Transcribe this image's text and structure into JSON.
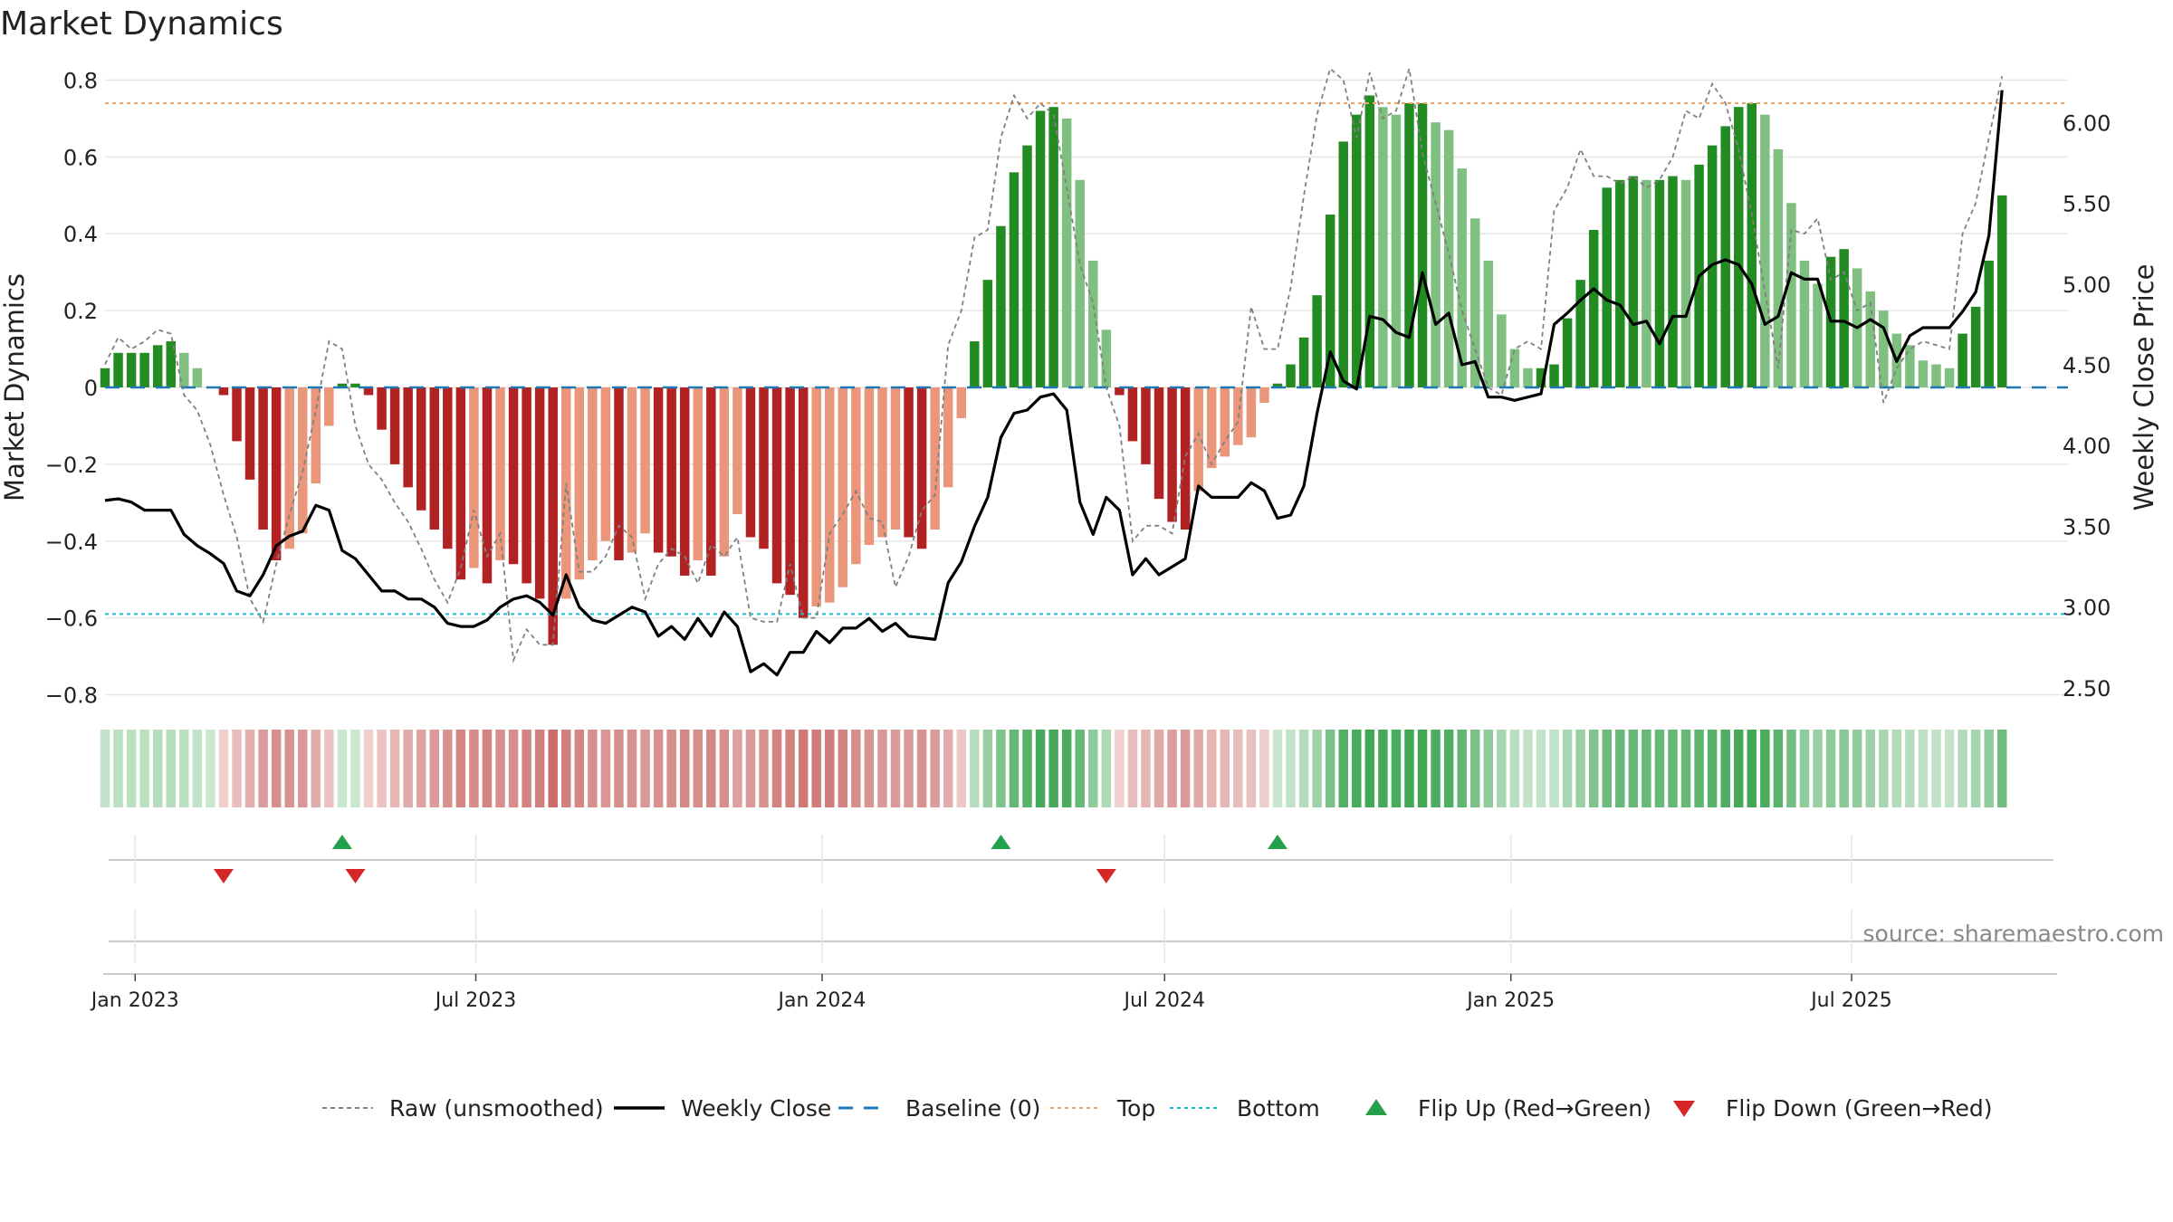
{
  "chart_data": {
    "type": "bar",
    "title": "Market Dynamics",
    "ylabel_left": "Market Dynamics",
    "ylabel_right": "Weekly Close Price",
    "left_ylim": [
      -0.82,
      0.82
    ],
    "left_yticks": [
      -0.8,
      -0.6,
      -0.4,
      -0.2,
      0,
      0.2,
      0.4,
      0.6,
      0.8
    ],
    "left_ytick_labels": [
      "−0.8",
      "−0.6",
      "−0.4",
      "−0.2",
      "0",
      "0.2",
      "0.4",
      "0.6",
      "0.8"
    ],
    "right_ylim": [
      2.41,
      6.31
    ],
    "right_yticks": [
      2.5,
      3.0,
      3.5,
      4.0,
      4.5,
      5.0,
      5.5,
      6.0
    ],
    "right_ytick_labels": [
      "2.50",
      "3.00",
      "3.50",
      "4.00",
      "4.50",
      "5.00",
      "5.50",
      "6.00"
    ],
    "x_start": "2022-12-16",
    "x_end": "2025-10-24",
    "xticks": [
      "2023-01-01",
      "2023-07-01",
      "2024-01-01",
      "2024-07-01",
      "2025-01-01",
      "2025-07-01"
    ],
    "xtick_labels": [
      "Jan 2023",
      "Jul 2023",
      "Jan 2024",
      "Jul 2024",
      "Jan 2025",
      "Jul 2025"
    ],
    "first_week": "2022-12-16",
    "week_step_days": 7,
    "top_line": 0.74,
    "bottom_line": -0.59,
    "baseline": 0,
    "grid": true,
    "smoothed": [
      0.05,
      0.09,
      0.09,
      0.09,
      0.11,
      0.12,
      0.09,
      0.05,
      0,
      -0.02,
      -0.14,
      -0.24,
      -0.37,
      -0.45,
      -0.42,
      -0.38,
      -0.25,
      -0.1,
      0.01,
      0.01,
      -0.02,
      -0.11,
      -0.2,
      -0.26,
      -0.32,
      -0.37,
      -0.42,
      -0.5,
      -0.47,
      -0.51,
      -0.45,
      -0.46,
      -0.51,
      -0.55,
      -0.67,
      -0.55,
      -0.5,
      -0.45,
      -0.4,
      -0.45,
      -0.43,
      -0.38,
      -0.43,
      -0.44,
      -0.49,
      -0.45,
      -0.49,
      -0.44,
      -0.33,
      -0.39,
      -0.42,
      -0.51,
      -0.54,
      -0.6,
      -0.57,
      -0.56,
      -0.52,
      -0.46,
      -0.41,
      -0.39,
      -0.37,
      -0.39,
      -0.42,
      -0.37,
      -0.26,
      -0.08,
      0.12,
      0.28,
      0.42,
      0.56,
      0.63,
      0.72,
      0.73,
      0.7,
      0.54,
      0.33,
      0.15,
      -0.02,
      -0.14,
      -0.2,
      -0.29,
      -0.35,
      -0.37,
      -0.27,
      -0.21,
      -0.18,
      -0.15,
      -0.13,
      -0.04,
      0.01,
      0.06,
      0.13,
      0.24,
      0.45,
      0.64,
      0.71,
      0.76,
      0.73,
      0.71,
      0.74,
      0.74,
      0.69,
      0.67,
      0.57,
      0.44,
      0.33,
      0.19,
      0.1,
      0.05,
      0.05,
      0.06,
      0.18,
      0.28,
      0.41,
      0.52,
      0.54,
      0.55,
      0.54,
      0.54,
      0.55,
      0.54,
      0.58,
      0.63,
      0.68,
      0.73,
      0.74,
      0.71,
      0.62,
      0.48,
      0.33,
      0.27,
      0.34,
      0.36,
      0.31,
      0.25,
      0.2,
      0.14,
      0.11,
      0.07,
      0.06,
      0.05,
      0.14,
      0.21,
      0.33,
      0.5
    ],
    "raw": [
      0.06,
      0.13,
      0.1,
      0.12,
      0.15,
      0.14,
      -0.02,
      -0.06,
      -0.15,
      -0.28,
      -0.39,
      -0.55,
      -0.61,
      -0.46,
      -0.33,
      -0.22,
      -0.06,
      0.12,
      0.1,
      -0.1,
      -0.2,
      -0.24,
      -0.3,
      -0.35,
      -0.42,
      -0.5,
      -0.56,
      -0.47,
      -0.32,
      -0.44,
      -0.38,
      -0.71,
      -0.63,
      -0.67,
      -0.67,
      -0.25,
      -0.48,
      -0.48,
      -0.44,
      -0.36,
      -0.39,
      -0.55,
      -0.46,
      -0.42,
      -0.44,
      -0.51,
      -0.41,
      -0.44,
      -0.39,
      -0.6,
      -0.61,
      -0.61,
      -0.46,
      -0.6,
      -0.6,
      -0.38,
      -0.33,
      -0.27,
      -0.34,
      -0.35,
      -0.52,
      -0.44,
      -0.32,
      -0.28,
      0.11,
      0.2,
      0.39,
      0.41,
      0.65,
      0.76,
      0.7,
      0.74,
      0.71,
      0.52,
      0.32,
      0.22,
      0,
      -0.1,
      -0.4,
      -0.36,
      -0.36,
      -0.38,
      -0.18,
      -0.12,
      -0.2,
      -0.14,
      -0.09,
      0.21,
      0.1,
      0.1,
      0.26,
      0.5,
      0.71,
      0.83,
      0.8,
      0.65,
      0.82,
      0.7,
      0.72,
      0.83,
      0.61,
      0.48,
      0.35,
      0.2,
      0.1,
      0,
      -0.02,
      0.1,
      0.12,
      0.1,
      0.46,
      0.52,
      0.62,
      0.55,
      0.55,
      0.53,
      0.55,
      0.52,
      0.54,
      0.6,
      0.72,
      0.7,
      0.79,
      0.74,
      0.62,
      0.45,
      0.25,
      0.05,
      0.41,
      0.4,
      0.44,
      0.28,
      0.3,
      0.2,
      0.22,
      -0.04,
      0.05,
      0.1,
      0.12,
      0.11,
      0.1,
      0.4,
      0.48,
      0.65,
      0.81
    ],
    "close": [
      3.66,
      3.67,
      3.65,
      3.6,
      3.6,
      3.6,
      3.45,
      3.38,
      3.33,
      3.27,
      3.1,
      3.07,
      3.2,
      3.38,
      3.44,
      3.47,
      3.63,
      3.6,
      3.35,
      3.3,
      3.2,
      3.1,
      3.1,
      3.05,
      3.05,
      3.0,
      2.9,
      2.88,
      2.88,
      2.92,
      3.0,
      3.05,
      3.07,
      3.03,
      2.95,
      3.2,
      3.0,
      2.92,
      2.9,
      2.95,
      3.0,
      2.97,
      2.82,
      2.88,
      2.8,
      2.93,
      2.82,
      2.97,
      2.88,
      2.6,
      2.65,
      2.58,
      2.72,
      2.72,
      2.85,
      2.78,
      2.87,
      2.87,
      2.93,
      2.85,
      2.9,
      2.82,
      2.81,
      2.8,
      3.15,
      3.28,
      3.5,
      3.68,
      4.05,
      4.2,
      4.22,
      4.3,
      4.32,
      4.22,
      3.65,
      3.45,
      3.68,
      3.6,
      3.2,
      3.3,
      3.2,
      3.25,
      3.3,
      3.75,
      3.68,
      3.68,
      3.68,
      3.77,
      3.72,
      3.55,
      3.57,
      3.75,
      4.2,
      4.58,
      4.4,
      4.35,
      4.8,
      4.78,
      4.7,
      4.67,
      5.07,
      4.75,
      4.82,
      4.5,
      4.52,
      4.3,
      4.3,
      4.28,
      4.3,
      4.32,
      4.75,
      4.82,
      4.9,
      4.97,
      4.9,
      4.87,
      4.75,
      4.77,
      4.63,
      4.8,
      4.8,
      5.05,
      5.12,
      5.15,
      5.12,
      5.0,
      4.75,
      4.8,
      5.07,
      5.03,
      5.03,
      4.77,
      4.77,
      4.73,
      4.78,
      4.73,
      4.52,
      4.68,
      4.73,
      4.73,
      4.73,
      4.83,
      4.95,
      5.3,
      6.2
    ],
    "strength": [
      0.22,
      0.22,
      0.22,
      0.22,
      0.22,
      0.22,
      0.22,
      0.22,
      0.22,
      0.22,
      0.22,
      0.22,
      0.22,
      0.22,
      0.22,
      0.22,
      0.22,
      0.22,
      0.22,
      0.22,
      0.22,
      0.22,
      0.22,
      0.22,
      0.22,
      0.22,
      0.22,
      0.22,
      0.22,
      0.22,
      0.22,
      0.22,
      0.22,
      0.22,
      0.22,
      0.22,
      0.22,
      0.22,
      0.22,
      0.22,
      0.22,
      0.22,
      0.22,
      0.22,
      0.22,
      0.22,
      0.22,
      0.22,
      0.22,
      0.22,
      0.22,
      0.22,
      0.22,
      0.22,
      0.22,
      0.22,
      0.22,
      0.22,
      0.22,
      0.22,
      0.22,
      0.22,
      0.22,
      0.22,
      0.22,
      0.22,
      0.22,
      0.22,
      0.22,
      0.22,
      0.22,
      0.22,
      0.22,
      0.22,
      0.22,
      0.22,
      0.22,
      0.22,
      0.22,
      0.22,
      0.22,
      0.22,
      0.22,
      0.22,
      0.22,
      0.22,
      0.22,
      0.22,
      0.22,
      0.22,
      0.22,
      0.22,
      0.22,
      0.22,
      0.22,
      0.22,
      0.22,
      0.22,
      0.22,
      0.22,
      0.22,
      0.22,
      0.22,
      0.22,
      0.22,
      0.22,
      0.22,
      0.22,
      0.22,
      0.22,
      0.22,
      0.22,
      0.22,
      0.22,
      0.22,
      0.22,
      0.22,
      0.22,
      0.22,
      0.22,
      0.22,
      0.22,
      0.22,
      0.22,
      0.22,
      0.22,
      0.22,
      0.22,
      0.22,
      0.22,
      0.22,
      0.22,
      0.22,
      0.22,
      0.22,
      0.22,
      0.22,
      0.22,
      0.22,
      0.22,
      0.22,
      0.22,
      0.22,
      0.22,
      0.22
    ],
    "flip_up": [
      "2023-04-21",
      "2024-04-05",
      "2024-08-30"
    ],
    "flip_down": [
      "2023-02-17",
      "2023-04-28",
      "2024-05-31"
    ],
    "colors": {
      "green_strong": "#228b22",
      "green_weak": "#7fbf7f",
      "red_strong": "#b22222",
      "red_weak": "#e9967a",
      "strip_green": "#2e9e44",
      "strip_red": "#c0504d",
      "raw_line": "#808080",
      "close_line": "#000000",
      "baseline": "#1f77b4",
      "top": "#f4a460",
      "bottom": "#17becf",
      "flip_up": "#22a04b",
      "flip_down": "#d62728",
      "grid": "#e6e6e6"
    },
    "legend": [
      {
        "key": "raw",
        "label": "Raw (unsmoothed)"
      },
      {
        "key": "close",
        "label": "Weekly Close"
      },
      {
        "key": "baseline",
        "label": "Baseline (0)"
      },
      {
        "key": "top",
        "label": "Top"
      },
      {
        "key": "bottom",
        "label": "Bottom"
      },
      {
        "key": "flip_up",
        "label": "Flip Up (Red→Green)"
      },
      {
        "key": "flip_down",
        "label": "Flip Down (Green→Red)"
      }
    ],
    "source": "source: sharemaestro.com"
  }
}
